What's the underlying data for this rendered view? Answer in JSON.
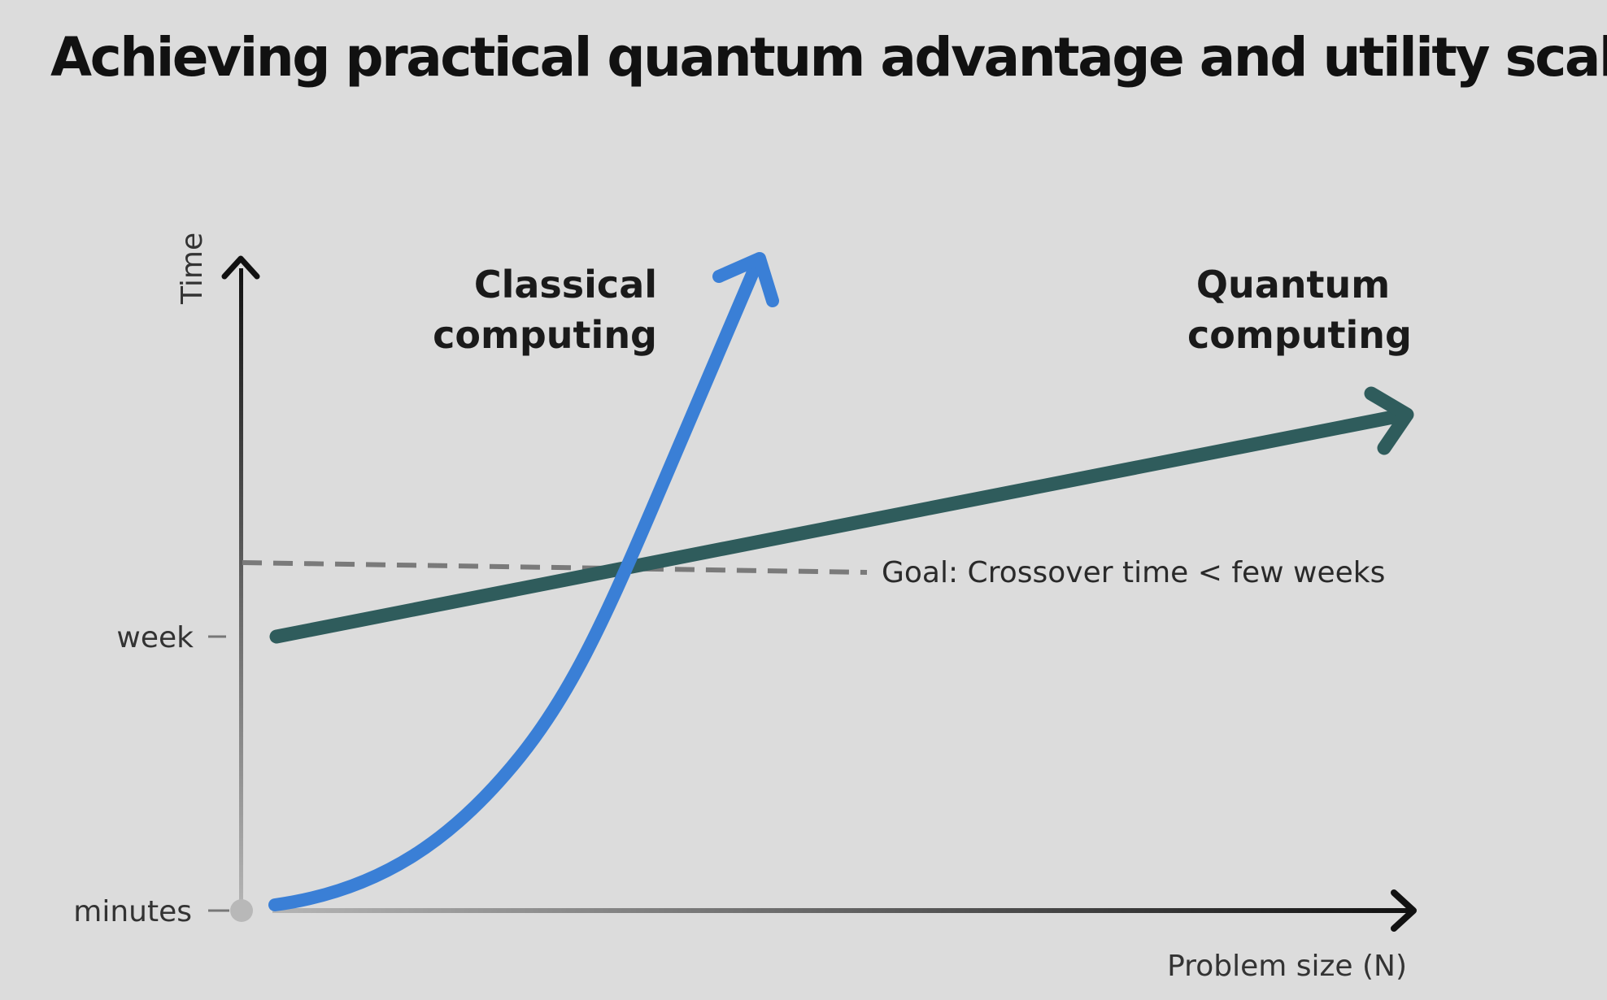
{
  "title": "Achieving practical quantum advantage and utility scale",
  "axes": {
    "y_label": "Time",
    "x_label": "Problem size (N)",
    "y_ticks": [
      "week",
      "minutes"
    ]
  },
  "curves": {
    "classical": {
      "label_line1": "Classical",
      "label_line2": "computing",
      "color": "#3a7fd6"
    },
    "quantum": {
      "label_line1": "Quantum",
      "label_line2": "computing",
      "color": "#2f5c5c"
    }
  },
  "goal": {
    "label": "Goal: Crossover time < few weeks"
  },
  "colors": {
    "background": "#dcdcdc",
    "axis": "#111111",
    "dashed_goal": "#7a7a7a"
  }
}
